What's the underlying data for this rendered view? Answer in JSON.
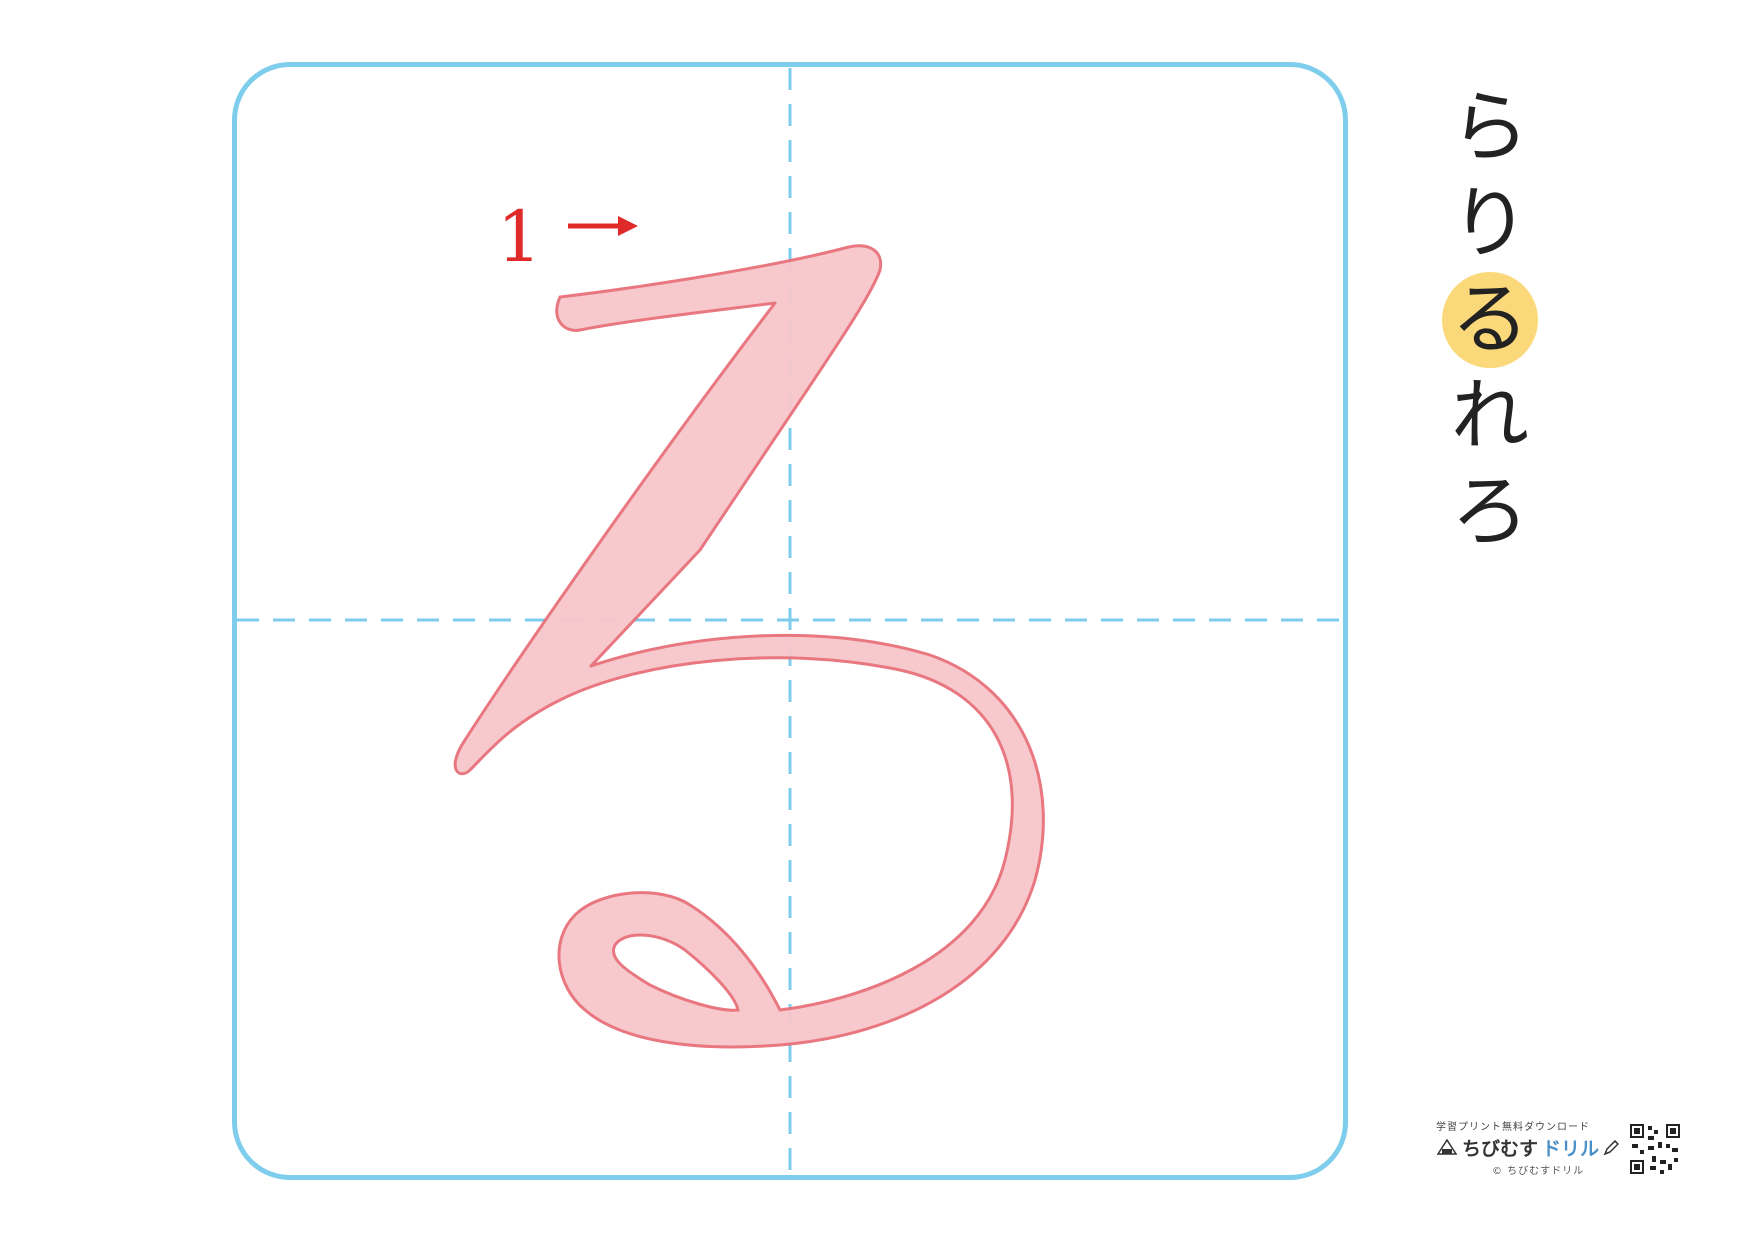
{
  "worksheet": {
    "stroke_number": "1",
    "series_chars": [
      "ら",
      "り",
      "る",
      "れ",
      "ろ"
    ],
    "current_index": 2
  },
  "footer": {
    "tagline": "学習プリント無料ダウンロード",
    "logo_main": "ちびむす",
    "logo_accent": "ドリル",
    "copyright": "© ちびむすドリル"
  },
  "colors": {
    "grid_border": "#7fcdec",
    "trace_fill": "#f7c7cb",
    "trace_stroke": "#e8707a",
    "stroke_number": "#e02a2a",
    "highlight": "#fbd97a"
  }
}
